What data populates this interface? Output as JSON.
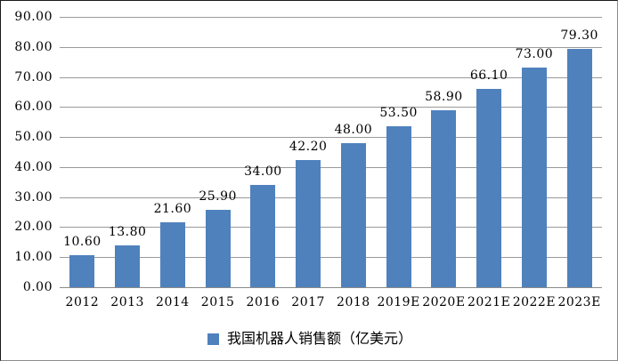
{
  "chart_data": {
    "type": "bar",
    "title": "",
    "xlabel": "",
    "ylabel": "",
    "categories": [
      "2012",
      "2013",
      "2014",
      "2015",
      "2016",
      "2017",
      "2018",
      "2019E",
      "2020E",
      "2021E",
      "2022E",
      "2023E"
    ],
    "series": [
      {
        "name": "我国机器人销售额（亿美元）",
        "values": [
          10.6,
          13.8,
          21.6,
          25.9,
          34.0,
          42.2,
          48.0,
          53.5,
          58.9,
          66.1,
          73.0,
          79.3
        ]
      }
    ],
    "value_labels": [
      "10.60",
      "13.80",
      "21.60",
      "25.90",
      "34.00",
      "42.20",
      "48.00",
      "53.50",
      "58.90",
      "66.10",
      "73.00",
      "79.30"
    ],
    "y_tick_labels": [
      "90.00",
      "80.00",
      "70.00",
      "60.00",
      "50.00",
      "40.00",
      "30.00",
      "20.00",
      "10.00",
      "0.00"
    ],
    "ylim": [
      0,
      90
    ],
    "y_step": 10,
    "grid": true,
    "legend_position": "bottom",
    "colors": {
      "bar": "#4F81BD",
      "gridline": "#9A9A9A",
      "axis_line": "#8A8A8A",
      "text": "#000000",
      "background": "#FFFFFF"
    }
  },
  "legend": {
    "swatch_color": "#4F81BD"
  }
}
